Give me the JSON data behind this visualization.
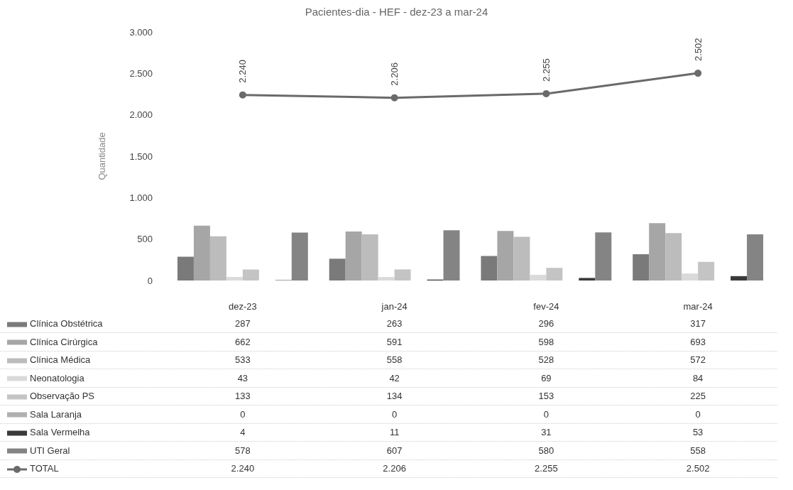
{
  "chart_data": {
    "type": "bar",
    "title": "Pacientes-dia - HEF - dez-23 a mar-24",
    "ylabel": "Quantidade",
    "categories": [
      "dez-23",
      "jan-24",
      "fev-24",
      "mar-24"
    ],
    "series": [
      {
        "name": "Clínica Obstétrica",
        "color": "#7a7a7a",
        "values": [
          287,
          263,
          296,
          317
        ]
      },
      {
        "name": "Clínica Cirúrgica",
        "color": "#a6a6a6",
        "values": [
          662,
          591,
          598,
          693
        ]
      },
      {
        "name": "Clínica Médica",
        "color": "#bcbcbc",
        "values": [
          533,
          558,
          528,
          572
        ]
      },
      {
        "name": "Neonatologia",
        "color": "#dadada",
        "values": [
          43,
          42,
          69,
          84
        ]
      },
      {
        "name": "Observação PS",
        "color": "#c4c4c4",
        "values": [
          133,
          134,
          153,
          225
        ]
      },
      {
        "name": "Sala Laranja",
        "color": "#b0b0b0",
        "values": [
          0,
          0,
          0,
          0
        ]
      },
      {
        "name": "Sala Vermelha",
        "color": "#3a3a3a",
        "values": [
          4,
          11,
          31,
          53
        ]
      },
      {
        "name": "UTI Geral",
        "color": "#848484",
        "values": [
          578,
          607,
          580,
          558
        ]
      },
      {
        "name": "TOTAL",
        "type": "line",
        "color": "#6a6a6a",
        "marker": "circle",
        "values": [
          2240,
          2206,
          2255,
          2502
        ],
        "value_labels": [
          "2.240",
          "2.206",
          "2.255",
          "2.502"
        ]
      }
    ],
    "ylim": [
      0,
      3000
    ],
    "yticks": [
      0,
      500,
      {
        "value": 1000,
        "label": "1.000"
      },
      {
        "value": 1500,
        "label": "1.500"
      },
      {
        "value": 2000,
        "label": "2.000"
      },
      {
        "value": 2500,
        "label": "2.500"
      },
      {
        "value": 3000,
        "label": "3.000"
      }
    ],
    "grid": false,
    "legend": "bottom",
    "data_labels": true
  }
}
